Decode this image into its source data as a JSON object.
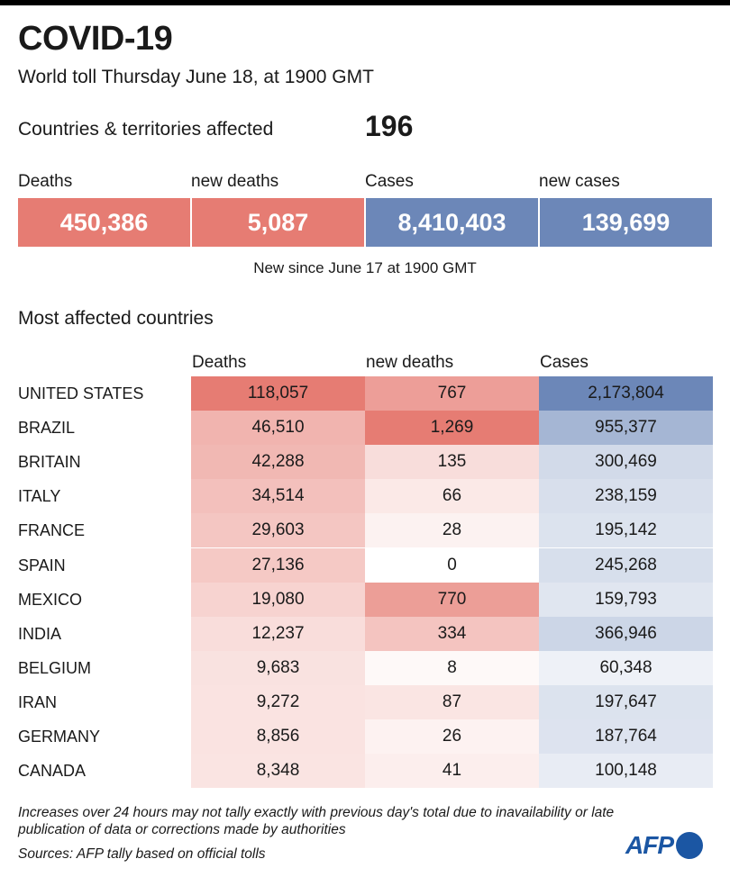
{
  "title": "COVID-19",
  "subtitle": "World toll Thursday June 18,  at 1900 GMT",
  "countries_label": "Countries & territories affected",
  "countries_value": "196",
  "stats": [
    {
      "label": "Deaths",
      "value": "450,386",
      "color": "#e67c73"
    },
    {
      "label": "new deaths",
      "value": "5,087",
      "color": "#e67c73"
    },
    {
      "label": "Cases",
      "value": "8,410,403",
      "color": "#6c87b8"
    },
    {
      "label": "new cases",
      "value": "139,699",
      "color": "#6c87b8"
    }
  ],
  "since": "New since  June 17 at 1900 GMT",
  "section_title": "Most affected countries",
  "chart_data": {
    "type": "table",
    "title": "Most affected countries",
    "columns": [
      "Deaths",
      "new deaths",
      "Cases"
    ],
    "rows": [
      {
        "country": "UNITED STATES",
        "deaths": "118,057",
        "new_deaths": "767",
        "cases": "2,173,804"
      },
      {
        "country": "BRAZIL",
        "deaths": "46,510",
        "new_deaths": "1,269",
        "cases": "955,377"
      },
      {
        "country": "BRITAIN",
        "deaths": "42,288",
        "new_deaths": "135",
        "cases": "300,469"
      },
      {
        "country": "ITALY",
        "deaths": "34,514",
        "new_deaths": "66",
        "cases": "238,159"
      },
      {
        "country": "FRANCE",
        "deaths": "29,603",
        "new_deaths": "28",
        "cases": "195,142"
      },
      {
        "country": "SPAIN",
        "deaths": "27,136",
        "new_deaths": "0",
        "cases": "245,268"
      },
      {
        "country": "MEXICO",
        "deaths": "19,080",
        "new_deaths": "770",
        "cases": "159,793"
      },
      {
        "country": "INDIA",
        "deaths": "12,237",
        "new_deaths": "334",
        "cases": "366,946"
      },
      {
        "country": "BELGIUM",
        "deaths": "9,683",
        "new_deaths": "8",
        "cases": "60,348"
      },
      {
        "country": "IRAN",
        "deaths": "9,272",
        "new_deaths": "87",
        "cases": "197,647"
      },
      {
        "country": "GERMANY",
        "deaths": "8,856",
        "new_deaths": "26",
        "cases": "187,764"
      },
      {
        "country": "CANADA",
        "deaths": "8,348",
        "new_deaths": "41",
        "cases": "100,148"
      }
    ],
    "colors": {
      "deaths": "#e67c73",
      "cases": "#6c87b8"
    }
  },
  "note": "Increases over 24 hours may not tally exactly with previous day's total due to inavailability or late publication of data or corrections made by authorities",
  "sources": "Sources: AFP tally based on official tolls",
  "logo": "AFP"
}
